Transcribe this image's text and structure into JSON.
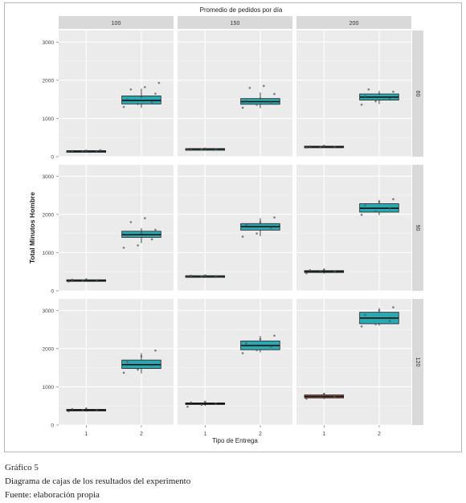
{
  "caption": {
    "figure_number": "Gráfico 5",
    "description": "Diagrama de cajas de los resultados del experimento",
    "source": "Fuente: elaboración propia"
  },
  "chart_data": {
    "type": "boxplot",
    "title": "Promedio de pedidos por día",
    "xlabel": "Tipo de Entrega",
    "ylabel": "Total Minutos Hombre",
    "ylim": [
      0,
      3300
    ],
    "y_ticks": [
      "0",
      "1000",
      "2000",
      "3000"
    ],
    "x_categories": [
      "1",
      "2"
    ],
    "column_facets": [
      "100",
      "150",
      "200"
    ],
    "row_facets": [
      "60",
      "90",
      "120"
    ],
    "grid": true,
    "colors": {
      "panel_bg": "#ebebeb",
      "strip_bg": "#d9d9d9",
      "box_default": "#2aa9b3",
      "box_alt": "#b5604a",
      "point": "#555555"
    },
    "panels": [
      {
        "row": 0,
        "col": 0,
        "boxes": [
          {
            "x": "1",
            "min": 120,
            "q1": 135,
            "median": 145,
            "q3": 155,
            "max": 175,
            "color": "#2aa9b3",
            "points": [
              128,
              138,
              145,
              150,
              158,
              170
            ]
          },
          {
            "x": "2",
            "min": 1280,
            "q1": 1380,
            "median": 1470,
            "q3": 1590,
            "max": 1780,
            "color": "#2aa9b3",
            "points": [
              1300,
              1380,
              1420,
              1500,
              1560,
              1650,
              1760,
              1820,
              1930
            ]
          }
        ]
      },
      {
        "row": 0,
        "col": 1,
        "boxes": [
          {
            "x": "1",
            "min": 175,
            "q1": 190,
            "median": 200,
            "q3": 210,
            "max": 225,
            "color": "#2aa9b3",
            "points": [
              180,
              195,
              200,
              205,
              215
            ]
          },
          {
            "x": "2",
            "min": 1270,
            "q1": 1370,
            "median": 1440,
            "q3": 1520,
            "max": 1680,
            "color": "#2aa9b3",
            "points": [
              1280,
              1360,
              1420,
              1460,
              1520,
              1640,
              1800,
              1850
            ]
          }
        ]
      },
      {
        "row": 0,
        "col": 2,
        "boxes": [
          {
            "x": "1",
            "min": 230,
            "q1": 250,
            "median": 260,
            "q3": 275,
            "max": 290,
            "color": "#2aa9b3",
            "points": [
              240,
              255,
              262,
              270,
              285
            ]
          },
          {
            "x": "2",
            "min": 1380,
            "q1": 1480,
            "median": 1560,
            "q3": 1640,
            "max": 1720,
            "color": "#2aa9b3",
            "points": [
              1360,
              1450,
              1520,
              1580,
              1640,
              1700,
              1760
            ]
          }
        ]
      },
      {
        "row": 1,
        "col": 0,
        "boxes": [
          {
            "x": "1",
            "min": 240,
            "q1": 262,
            "median": 275,
            "q3": 290,
            "max": 310,
            "color": "#2aa9b3",
            "points": [
              245,
              265,
              280,
              292,
              305
            ]
          },
          {
            "x": "2",
            "min": 1250,
            "q1": 1400,
            "median": 1470,
            "q3": 1560,
            "max": 1640,
            "color": "#2aa9b3",
            "points": [
              1130,
              1190,
              1350,
              1450,
              1520,
              1600,
              1800,
              1900
            ]
          }
        ]
      },
      {
        "row": 1,
        "col": 1,
        "boxes": [
          {
            "x": "1",
            "min": 360,
            "q1": 375,
            "median": 385,
            "q3": 395,
            "max": 410,
            "color": "#2aa9b3",
            "points": [
              365,
              380,
              388,
              398,
              405
            ]
          },
          {
            "x": "2",
            "min": 1430,
            "q1": 1590,
            "median": 1680,
            "q3": 1760,
            "max": 1900,
            "color": "#2aa9b3",
            "points": [
              1420,
              1500,
              1650,
              1720,
              1800,
              1920
            ]
          }
        ]
      },
      {
        "row": 1,
        "col": 2,
        "boxes": [
          {
            "x": "1",
            "min": 450,
            "q1": 480,
            "median": 505,
            "q3": 530,
            "max": 570,
            "color": "#2aa9b3",
            "points": [
              460,
              490,
              510,
              540,
              560
            ]
          },
          {
            "x": "2",
            "min": 1980,
            "q1": 2060,
            "median": 2160,
            "q3": 2280,
            "max": 2380,
            "color": "#2aa9b3",
            "points": [
              1990,
              2080,
              2150,
              2240,
              2330,
              2400
            ]
          }
        ]
      },
      {
        "row": 2,
        "col": 0,
        "boxes": [
          {
            "x": "1",
            "min": 350,
            "q1": 380,
            "median": 395,
            "q3": 410,
            "max": 440,
            "color": "#2aa9b3",
            "points": [
              360,
              390,
              400,
              420,
              435
            ]
          },
          {
            "x": "2",
            "min": 1350,
            "q1": 1480,
            "median": 1580,
            "q3": 1700,
            "max": 1880,
            "color": "#2aa9b3",
            "points": [
              1370,
              1450,
              1560,
              1650,
              1800,
              1950
            ]
          }
        ]
      },
      {
        "row": 2,
        "col": 1,
        "boxes": [
          {
            "x": "1",
            "min": 500,
            "q1": 540,
            "median": 560,
            "q3": 580,
            "max": 610,
            "color": "#2aa9b3",
            "points": [
              480,
              530,
              560,
              590,
              610
            ]
          },
          {
            "x": "2",
            "min": 1900,
            "q1": 1970,
            "median": 2080,
            "q3": 2200,
            "max": 2330,
            "color": "#2aa9b3",
            "points": [
              1880,
              1960,
              2050,
              2140,
              2250,
              2340
            ]
          }
        ]
      },
      {
        "row": 2,
        "col": 2,
        "boxes": [
          {
            "x": "1",
            "min": 680,
            "q1": 710,
            "median": 745,
            "q3": 790,
            "max": 830,
            "color": "#b5604a",
            "points": [
              690,
              720,
              750,
              780,
              820
            ]
          },
          {
            "x": "2",
            "min": 2600,
            "q1": 2650,
            "median": 2800,
            "q3": 2950,
            "max": 3060,
            "color": "#2aa9b3",
            "points": [
              2580,
              2640,
              2720,
              2880,
              3000,
              3080
            ]
          }
        ]
      }
    ]
  }
}
